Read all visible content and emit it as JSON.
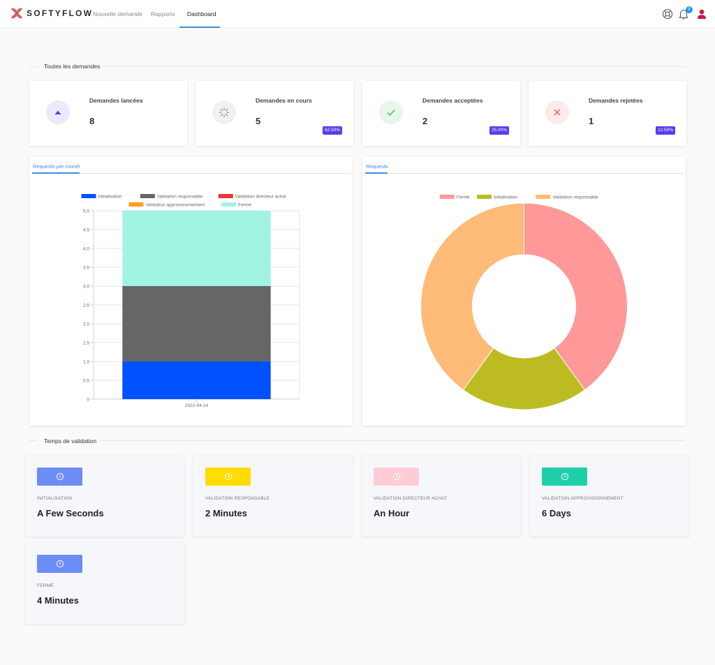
{
  "app": {
    "brand": "SOFTYFLOW",
    "notification_count": "5"
  },
  "nav": {
    "items": [
      "Nouvelle demande",
      "Rapports",
      "Dashboard"
    ],
    "active": "Dashboard"
  },
  "sections": {
    "requests_title": "Toutes les demandes",
    "validation_title": "Temps de validation"
  },
  "stats": [
    {
      "label": "Demandes lancées",
      "value": "8",
      "percent": "",
      "icon": "triangle-up-icon",
      "icon_bg": "#ece9fd",
      "icon_color": "#5b3bea"
    },
    {
      "label": "Demandes en cours",
      "value": "5",
      "percent": "62.50%",
      "icon": "spinner-icon",
      "icon_bg": "#f1f1f1",
      "icon_color": "#8c8c8c"
    },
    {
      "label": "Demandes acceptées",
      "value": "2",
      "percent": "25.00%",
      "icon": "check-icon",
      "icon_bg": "#e6f7ea",
      "icon_color": "#45b36a"
    },
    {
      "label": "Demandes rejetées",
      "value": "1",
      "percent": "12.50%",
      "icon": "close-icon",
      "icon_bg": "#fdeaea",
      "icon_color": "#e05a5a"
    }
  ],
  "bar_panel": {
    "tab": "Requests per month"
  },
  "pie_panel": {
    "tab": "Requests"
  },
  "chart_data": [
    {
      "type": "bar",
      "stacked": true,
      "categories": [
        "2022-04-14"
      ],
      "series": [
        {
          "name": "Initialisation",
          "values": [
            1
          ],
          "color": "#0051ff"
        },
        {
          "name": "Validation responsable",
          "values": [
            2
          ],
          "color": "#666666"
        },
        {
          "name": "Validation directeur achat",
          "values": [
            0
          ],
          "color": "#ee3535"
        },
        {
          "name": "Validation approvisionnement",
          "values": [
            0
          ],
          "color": "#ff9f1a"
        },
        {
          "name": "Fermé",
          "values": [
            2
          ],
          "color": "#a2f4e2"
        }
      ],
      "ylim": [
        0,
        5
      ],
      "yticks": [
        "0",
        "0.5",
        "1.0",
        "1.5",
        "2.0",
        "2.5",
        "3.0",
        "3.5",
        "4.0",
        "4.5",
        "5.0"
      ],
      "grid": true,
      "legend": "top"
    },
    {
      "type": "pie",
      "donut": true,
      "slices": [
        {
          "name": "Fermé",
          "value": 2,
          "color": "#ff9999"
        },
        {
          "name": "Initialisation",
          "value": 1,
          "color": "#bcbc22"
        },
        {
          "name": "Validation responsable",
          "value": 2,
          "color": "#ffbb78"
        }
      ],
      "legend": "top"
    }
  ],
  "validation": [
    {
      "stage": "Initialisation",
      "value": "A Few Seconds",
      "color": "#6e8cf5"
    },
    {
      "stage": "Validation responsable",
      "value": "2 Minutes",
      "color": "#ffdd00"
    },
    {
      "stage": "Validation directeur achat",
      "value": "An Hour",
      "color": "#ffccd5"
    },
    {
      "stage": "Validation approvisionnement",
      "value": "6 Days",
      "color": "#1ecfaa"
    },
    {
      "stage": "Fermé",
      "value": "4 Minutes",
      "color": "#6e8cf5"
    }
  ]
}
